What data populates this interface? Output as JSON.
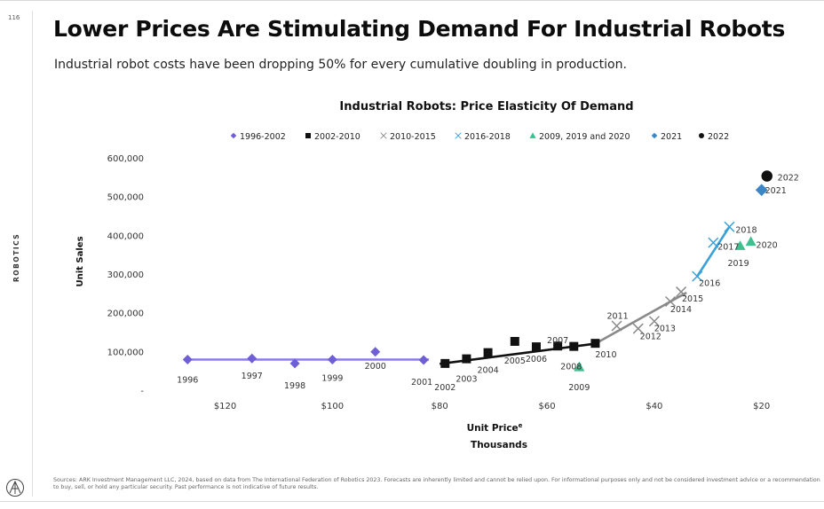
{
  "page": {
    "page_number": "116",
    "section_label": "ROBOTICS",
    "title": "Lower Prices Are Stimulating Demand For Industrial Robots",
    "subtitle": "Industrial robot costs have been dropping 50% for every cumulative doubling in production.",
    "sources": "Sources: ARK Investment Management LLC, 2024, based on data from The International Federation of Robotics 2023. Forecasts are inherently limited and cannot be relied upon. For informational purposes only and not be considered investment advice or a recommendation to buy, sell, or hold any particular security. Past performance is not indicative of future results."
  },
  "chart_data": {
    "type": "scatter",
    "title": "Industrial Robots: Price Elasticity Of Demand",
    "xlabel": "Unit Price",
    "xlabel_superscript": "e",
    "xlabel_units": "Thousands",
    "ylabel": "Unit Sales",
    "x_reversed": true,
    "xlim": [
      133,
      13
    ],
    "ylim": [
      0,
      600000
    ],
    "x_ticks": [
      {
        "value": 120,
        "label": "$120"
      },
      {
        "value": 100,
        "label": "$100"
      },
      {
        "value": 80,
        "label": "$80"
      },
      {
        "value": 60,
        "label": "$60"
      },
      {
        "value": 40,
        "label": "$40"
      },
      {
        "value": 20,
        "label": "$20"
      }
    ],
    "y_ticks": [
      {
        "value": 0,
        "label": "-"
      },
      {
        "value": 100000,
        "label": "100,000"
      },
      {
        "value": 200000,
        "label": "200,000"
      },
      {
        "value": 300000,
        "label": "300,000"
      },
      {
        "value": 400000,
        "label": "400,000"
      },
      {
        "value": 500000,
        "label": "500,000"
      },
      {
        "value": 600000,
        "label": "600,000"
      }
    ],
    "grid": false,
    "legend_position": "top",
    "series": [
      {
        "name": "1996-2002",
        "marker": "diamond",
        "color": "#6f5fd6",
        "trend_line": {
          "color": "#8a7be8",
          "points": [
            [
              127,
              79000
            ],
            [
              82,
              79000
            ]
          ]
        },
        "points": [
          {
            "year": "1996",
            "price": 127,
            "units": 79000
          },
          {
            "year": "1997",
            "price": 115,
            "units": 82000
          },
          {
            "year": "1998",
            "price": 107,
            "units": 69000
          },
          {
            "year": "1999",
            "price": 100,
            "units": 79000
          },
          {
            "year": "2000",
            "price": 92,
            "units": 99000
          },
          {
            "year": "2001",
            "price": 83,
            "units": 78000
          }
        ]
      },
      {
        "name": "2002-2010",
        "marker": "square",
        "color": "#111111",
        "trend_line": {
          "color": "#111111",
          "points": [
            [
              80,
              68000
            ],
            [
              51,
              120000
            ]
          ]
        },
        "points": [
          {
            "year": "2002",
            "price": 79,
            "units": 69000
          },
          {
            "year": "2003",
            "price": 75,
            "units": 81000
          },
          {
            "year": "2004",
            "price": 71,
            "units": 97000
          },
          {
            "year": "2005",
            "price": 66,
            "units": 126000
          },
          {
            "year": "2006",
            "price": 62,
            "units": 112000
          },
          {
            "year": "2007",
            "price": 58,
            "units": 114000
          },
          {
            "year": "2008",
            "price": 55,
            "units": 113000
          },
          {
            "year": "2010",
            "price": 51,
            "units": 121000
          }
        ]
      },
      {
        "name": "2010-2015",
        "marker": "x",
        "color": "#8a8a8a",
        "trend_line": {
          "color": "#8a8a8a",
          "points": [
            [
              51,
              120000
            ],
            [
              34,
              252000
            ]
          ]
        },
        "points": [
          {
            "year": "2011",
            "price": 47,
            "units": 166000
          },
          {
            "year": "2012",
            "price": 43,
            "units": 159000
          },
          {
            "year": "2013",
            "price": 40,
            "units": 178000
          },
          {
            "year": "2014",
            "price": 37,
            "units": 229000
          },
          {
            "year": "2015",
            "price": 35,
            "units": 254000
          }
        ]
      },
      {
        "name": "2016-2018",
        "marker": "x",
        "color": "#3aa0d8",
        "trend_line": {
          "color": "#3aa0d8",
          "points": [
            [
              32,
              294000
            ],
            [
              26,
              422000
            ]
          ]
        },
        "points": [
          {
            "year": "2016",
            "price": 32,
            "units": 294000
          },
          {
            "year": "2017",
            "price": 29,
            "units": 381000
          },
          {
            "year": "2018",
            "price": 26,
            "units": 422000
          }
        ]
      },
      {
        "name": "2009, 2019 and 2020",
        "marker": "triangle",
        "color": "#3dbf8e",
        "points": [
          {
            "year": "2009",
            "price": 54,
            "units": 60000
          },
          {
            "year": "2019",
            "price": 24,
            "units": 373000
          },
          {
            "year": "2020",
            "price": 22,
            "units": 384000
          }
        ]
      },
      {
        "name": "2021",
        "marker": "diamond",
        "color": "#3d86c6",
        "points": [
          {
            "year": "2021",
            "price": 20,
            "units": 517000
          }
        ]
      },
      {
        "name": "2022",
        "marker": "circle",
        "color": "#111111",
        "points": [
          {
            "year": "2022",
            "price": 19,
            "units": 553000
          }
        ]
      }
    ]
  }
}
